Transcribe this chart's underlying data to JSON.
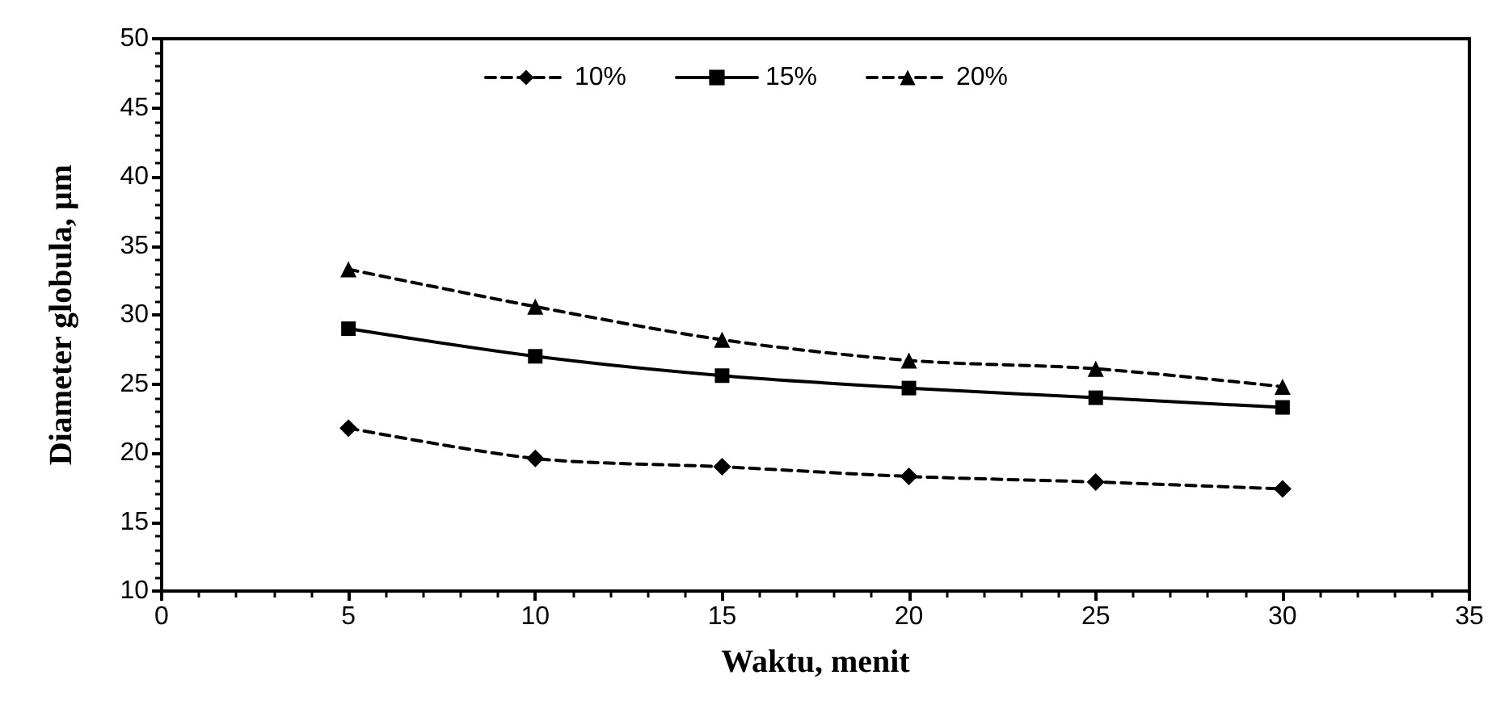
{
  "chart_data": {
    "type": "line",
    "xlabel": "Waktu, menit",
    "ylabel": "Diameter globula, µm",
    "x": [
      5,
      10,
      15,
      20,
      25,
      30
    ],
    "series": [
      {
        "name": "10%",
        "color": "#000000",
        "marker": "diamond",
        "line_style": "dashed",
        "values": [
          21.8,
          19.6,
          19.0,
          18.3,
          17.9,
          17.4
        ]
      },
      {
        "name": "15%",
        "color": "#000000",
        "marker": "square",
        "line_style": "solid",
        "values": [
          29.0,
          27.0,
          25.6,
          24.7,
          24.0,
          23.3
        ]
      },
      {
        "name": "20%",
        "color": "#000000",
        "marker": "triangle",
        "line_style": "dashed",
        "values": [
          33.3,
          30.6,
          28.2,
          26.7,
          26.1,
          24.8
        ]
      }
    ],
    "xlim": [
      0,
      35
    ],
    "xticks": [
      0,
      5,
      10,
      15,
      20,
      25,
      30,
      35
    ],
    "ylim": [
      10,
      50
    ],
    "yticks": [
      10,
      15,
      20,
      25,
      30,
      35,
      40,
      45,
      50
    ],
    "grid": false,
    "legend": "top"
  }
}
